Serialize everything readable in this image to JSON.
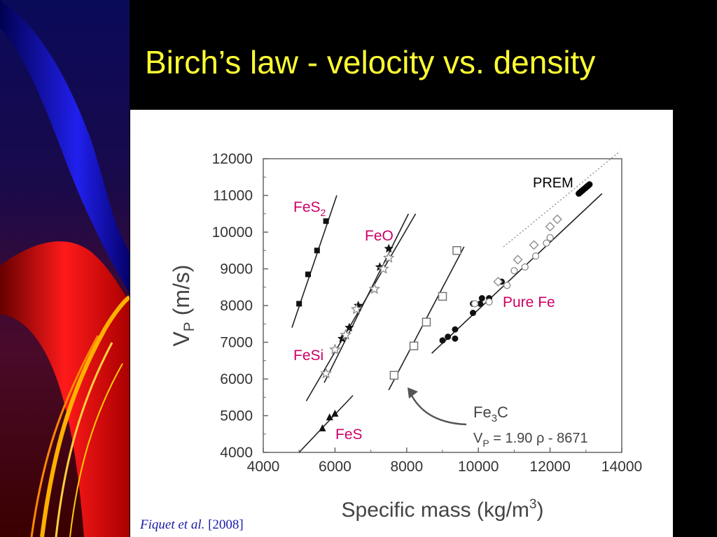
{
  "slide": {
    "title": "Birch’s law - velocity vs. density",
    "title_color": "#ffff33",
    "background": "#000000"
  },
  "citation": {
    "author": "Fiquet",
    "etal": " et al.",
    "year": " [2008]",
    "color": "#1a1aa8"
  },
  "chart_data": {
    "type": "scatter",
    "xlabel": "Specific mass (kg/m³)",
    "ylabel": "V",
    "ylabel_sub": "P",
    "ylabel_unit": " (m/s)",
    "xlim": [
      4000,
      14000
    ],
    "ylim": [
      4000,
      12000
    ],
    "xticks": [
      "4000",
      "6000",
      "8000",
      "10000",
      "12000",
      "14000"
    ],
    "yticks": [
      "4000",
      "5000",
      "6000",
      "7000",
      "8000",
      "9000",
      "10000",
      "11000",
      "12000"
    ],
    "grid": false,
    "series": [
      {
        "name": "FeS₂",
        "marker": "square-filled",
        "label_color": "#cc0066",
        "points": [
          [
            5000,
            8050
          ],
          [
            5250,
            8850
          ],
          [
            5500,
            9500
          ],
          [
            5750,
            10300
          ]
        ],
        "fit": [
          [
            4800,
            7400
          ],
          [
            6050,
            11000
          ]
        ]
      },
      {
        "name": "FeO",
        "marker": "star-filled",
        "label_color": "#cc0066",
        "points": [
          [
            6200,
            7100
          ],
          [
            6400,
            7400
          ],
          [
            6650,
            8000
          ],
          [
            7250,
            9050
          ],
          [
            7500,
            9550
          ]
        ],
        "fit": [
          [
            5200,
            5400
          ],
          [
            8250,
            10500
          ]
        ]
      },
      {
        "name": "FeSi",
        "marker": "star-open",
        "label_color": "#cc0066",
        "points": [
          [
            5750,
            6150
          ],
          [
            6000,
            6800
          ],
          [
            6300,
            7200
          ],
          [
            6600,
            7900
          ],
          [
            7100,
            8450
          ],
          [
            7350,
            9000
          ],
          [
            7500,
            9300
          ]
        ],
        "fit": [
          [
            5700,
            5900
          ],
          [
            8050,
            10500
          ]
        ]
      },
      {
        "name": "FeS",
        "marker": "triangle-filled",
        "label_color": "#cc0066",
        "points": [
          [
            5650,
            4650
          ],
          [
            5850,
            4950
          ],
          [
            6000,
            5050
          ]
        ],
        "fit": [
          [
            5000,
            4000
          ],
          [
            6500,
            5550
          ]
        ]
      },
      {
        "name": "Fe₃C",
        "marker": "square-open",
        "label_color": "#333333",
        "points": [
          [
            7650,
            6100
          ],
          [
            8200,
            6900
          ],
          [
            8550,
            7550
          ],
          [
            9000,
            8250
          ],
          [
            9400,
            9500
          ]
        ],
        "fit": [
          [
            7500,
            5700
          ],
          [
            9600,
            9600
          ]
        ]
      },
      {
        "name": "Pure Fe",
        "marker": "circle-filled",
        "label_color": "#cc0066",
        "points": [
          [
            9000,
            7050
          ],
          [
            9150,
            7150
          ],
          [
            9350,
            7100
          ],
          [
            9350,
            7350
          ],
          [
            9850,
            7800
          ],
          [
            10050,
            8050
          ],
          [
            10100,
            8200
          ],
          [
            10300,
            8200
          ],
          [
            10650,
            8650
          ],
          [
            9850,
            8050
          ]
        ],
        "fit": [
          [
            8700,
            6700
          ],
          [
            13450,
            11050
          ]
        ]
      },
      {
        "name": "Pure Fe (open)",
        "marker": "circle-open",
        "label_color": "#cc0066",
        "points": [
          [
            9900,
            8050
          ],
          [
            10300,
            8100
          ],
          [
            10800,
            8550
          ],
          [
            11000,
            8950
          ],
          [
            11300,
            9050
          ],
          [
            11600,
            9350
          ],
          [
            11900,
            9700
          ],
          [
            12000,
            9850
          ]
        ],
        "fit": null
      },
      {
        "name": "diamonds",
        "marker": "diamond-open",
        "label_color": "#cc0066",
        "points": [
          [
            10550,
            8650
          ],
          [
            11100,
            9250
          ],
          [
            11550,
            9650
          ],
          [
            12000,
            10150
          ],
          [
            12200,
            10350
          ]
        ],
        "fit": null
      }
    ],
    "prem": {
      "label": "PREM",
      "segment": [
        [
          12800,
          11050
        ],
        [
          13100,
          11300
        ]
      ],
      "dotted": [
        [
          10700,
          9600
        ],
        [
          13950,
          12200
        ]
      ]
    },
    "annotations": {
      "fes2": "FeS₂",
      "feo": "FeO",
      "fesi": "FeSi",
      "fes": "FeS",
      "purefe": "Pure Fe",
      "fe3c_label": "Fe",
      "fe3c_sub": "3",
      "fe3c_tail": "C",
      "fit_eq_v": "V",
      "fit_eq_sub": "P",
      "fit_eq_rest": " = 1.90 ρ - 8671"
    }
  }
}
